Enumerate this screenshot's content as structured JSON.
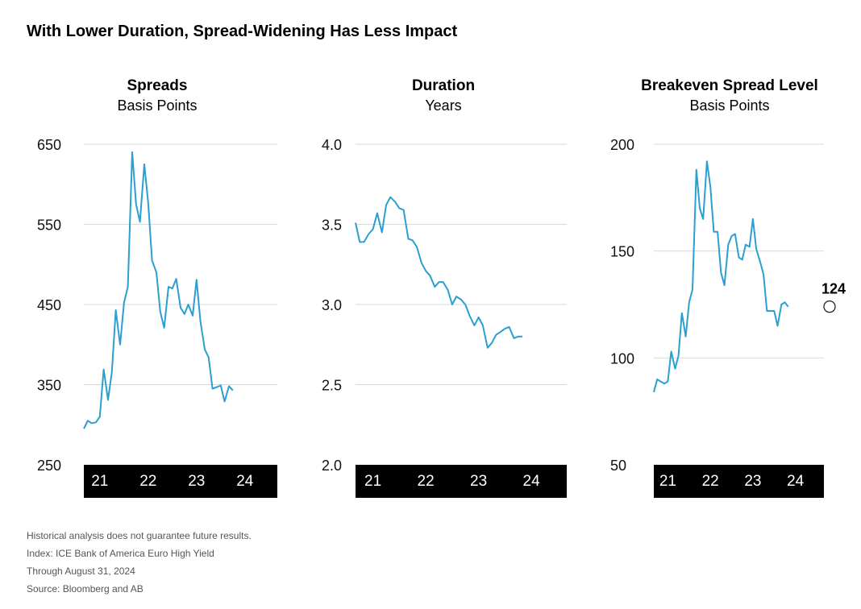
{
  "title": "With Lower Duration, Spread-Widening Has Less Impact",
  "accent_color": "#2a9fd0",
  "chart_data": [
    {
      "type": "line",
      "title": "Spreads",
      "subtitle": "Basis Points",
      "ylim": [
        250,
        650
      ],
      "yticks": [
        "650",
        "550",
        "450",
        "350",
        "250"
      ],
      "xticks": [
        "21",
        "22",
        "23",
        "24"
      ],
      "x_range": [
        2020.67,
        2024.67
      ],
      "grid": true,
      "series": [
        {
          "x": [
            2020.67,
            2020.75,
            2020.83,
            2020.92,
            2021.0,
            2021.08,
            2021.17,
            2021.25,
            2021.33,
            2021.42,
            2021.5,
            2021.58,
            2021.67,
            2021.75,
            2021.83,
            2021.92,
            2022.0,
            2022.08,
            2022.17,
            2022.25,
            2022.33,
            2022.42,
            2022.5,
            2022.58,
            2022.67,
            2022.75,
            2022.83,
            2022.92,
            2023.0,
            2023.08,
            2023.17,
            2023.25,
            2023.33,
            2023.42,
            2023.5,
            2023.58,
            2023.67,
            2023.75,
            2023.83,
            2023.92,
            2024.0,
            2024.08,
            2024.17,
            2024.25,
            2024.33,
            2024.42,
            2024.5,
            2024.58,
            2024.67
          ],
          "y": [
            295,
            305,
            302,
            303,
            310,
            369,
            331,
            366,
            443,
            400,
            452,
            472,
            640,
            575,
            553,
            625,
            577,
            505,
            490,
            441,
            421,
            472,
            470,
            482,
            446,
            438,
            450,
            436,
            481,
            429,
            394,
            384,
            345,
            347,
            349,
            329,
            348,
            343,
            null,
            null,
            null,
            null,
            null,
            null,
            null,
            null,
            null,
            null,
            null
          ]
        }
      ]
    },
    {
      "type": "line",
      "title": "Duration",
      "subtitle": "Years",
      "ylim": [
        2.0,
        4.0
      ],
      "yticks": [
        "4.0",
        "3.5",
        "3.0",
        "2.5",
        "2.0"
      ],
      "xticks": [
        "21",
        "22",
        "23",
        "24"
      ],
      "x_range": [
        2020.67,
        2024.67
      ],
      "grid": true,
      "series": [
        {
          "x": [
            2020.67,
            2020.75,
            2020.83,
            2020.92,
            2021.0,
            2021.08,
            2021.17,
            2021.25,
            2021.33,
            2021.42,
            2021.5,
            2021.58,
            2021.67,
            2021.75,
            2021.83,
            2021.92,
            2022.0,
            2022.08,
            2022.17,
            2022.25,
            2022.33,
            2022.42,
            2022.5,
            2022.58,
            2022.67,
            2022.75,
            2022.83,
            2022.92,
            2023.0,
            2023.08,
            2023.17,
            2023.25,
            2023.33,
            2023.42,
            2023.5,
            2023.58,
            2023.67,
            2023.75,
            2023.83,
            2023.92,
            2024.0,
            2024.08,
            2024.17,
            2024.25,
            2024.33,
            2024.42,
            2024.5,
            2024.58,
            2024.67
          ],
          "y": [
            3.51,
            3.39,
            3.39,
            3.44,
            3.47,
            3.57,
            3.45,
            3.62,
            3.67,
            3.64,
            3.6,
            3.59,
            3.41,
            3.4,
            3.36,
            3.26,
            3.21,
            3.18,
            3.11,
            3.14,
            3.14,
            3.09,
            3.0,
            3.05,
            3.03,
            3.0,
            2.93,
            2.87,
            2.92,
            2.87,
            2.73,
            2.76,
            2.81,
            2.83,
            2.85,
            2.86,
            2.79,
            2.8,
            2.8,
            null,
            null,
            null,
            null,
            null,
            null,
            null,
            null,
            null,
            null
          ]
        }
      ]
    },
    {
      "type": "line",
      "title": "Breakeven Spread Level",
      "subtitle": "Basis Points",
      "ylim": [
        50,
        200
      ],
      "yticks": [
        "200",
        "150",
        "100",
        "50"
      ],
      "xticks": [
        "21",
        "22",
        "23",
        "24"
      ],
      "x_range": [
        2020.67,
        2024.67
      ],
      "grid": true,
      "annotation": {
        "label": "124",
        "x": 2024.67,
        "y": 124
      },
      "series": [
        {
          "x": [
            2020.67,
            2020.75,
            2020.83,
            2020.92,
            2021.0,
            2021.08,
            2021.17,
            2021.25,
            2021.33,
            2021.42,
            2021.5,
            2021.58,
            2021.67,
            2021.75,
            2021.83,
            2021.92,
            2022.0,
            2022.08,
            2022.17,
            2022.25,
            2022.33,
            2022.42,
            2022.5,
            2022.58,
            2022.67,
            2022.75,
            2022.83,
            2022.92,
            2023.0,
            2023.08,
            2023.17,
            2023.25,
            2023.33,
            2023.42,
            2023.5,
            2023.58,
            2023.67,
            2023.75,
            2023.83,
            2023.92,
            2024.0,
            2024.08,
            2024.17,
            2024.25,
            2024.33,
            2024.42,
            2024.5,
            2024.58,
            2024.67
          ],
          "y": [
            84,
            90,
            89,
            88,
            89,
            103,
            95,
            101,
            121,
            110,
            126,
            132,
            188,
            170,
            165,
            192,
            180,
            159,
            159,
            140,
            134,
            153,
            157,
            158,
            147,
            146,
            153,
            152,
            165,
            151,
            145,
            139,
            122,
            122,
            122,
            115,
            125,
            126,
            124,
            null,
            null,
            null,
            null,
            null,
            null,
            null,
            null,
            null,
            null
          ]
        }
      ]
    }
  ],
  "notes": [
    "Historical analysis does not guarantee future results.",
    "Index: ICE Bank of America Euro High Yield",
    "Through August 31, 2024",
    "Source: Bloomberg and AB"
  ]
}
